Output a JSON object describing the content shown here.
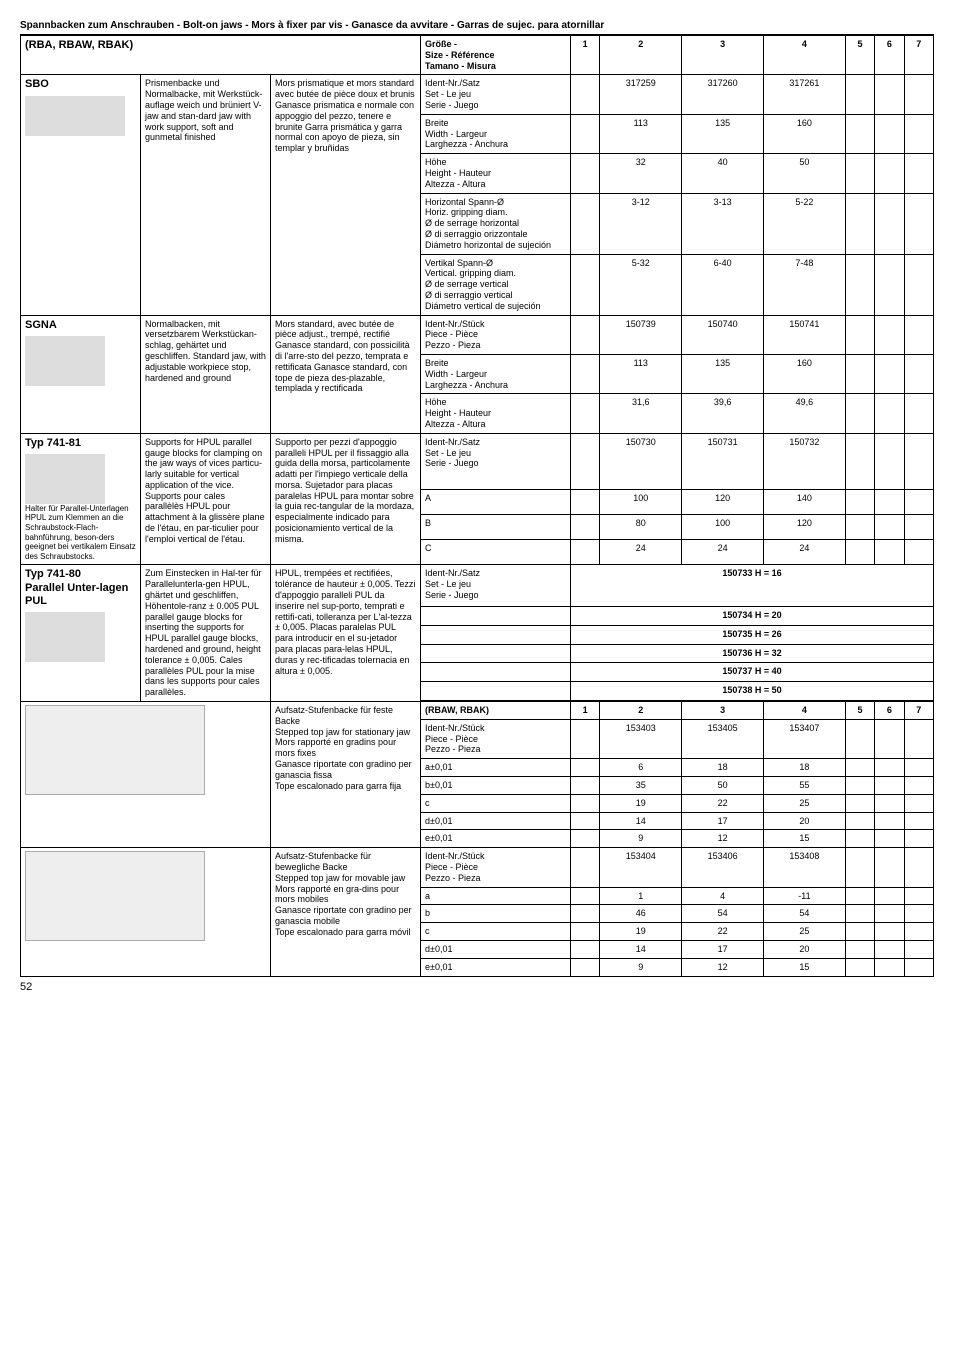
{
  "page_title": "Spannbacken zum Anschrauben - Bolt-on jaws - Mors à fixer par vis - Ganasce da avvitare - Garras de sujec. para atornillar",
  "page_number": "52",
  "top_header": {
    "model": "(RBA, RBAW, RBAK)",
    "size_label": "Größe -\nSize - Référence\nTamano - Misura",
    "cols": [
      "1",
      "2",
      "3",
      "4",
      "5",
      "6",
      "7"
    ]
  },
  "sbo": {
    "name": "SBO",
    "de": "Prismenbacke und Normalbacke, mit Werkstück-auflage weich und brüniert V-jaw and stan-dard jaw with work support, soft and gunmetal finished",
    "fr": "Mors prismatique et mors standard avec butée de pièce doux et brunis Ganasce prismatica e normale con appoggio del pezzo, tenere e brunite Garra prismática y garra normal con apoyo de pieza, sin templar y bruñidas",
    "rows": [
      {
        "param": "Ident-Nr./Satz\nSet - Le jeu\nSerie - Juego",
        "v": [
          "",
          "317259",
          "317260",
          "317261",
          "",
          "",
          ""
        ]
      },
      {
        "param": "Breite\nWidth - Largeur\nLarghezza - Anchura",
        "v": [
          "",
          "113",
          "135",
          "160",
          "",
          "",
          ""
        ]
      },
      {
        "param": "Höhe\nHeight - Hauteur\nAltezza - Altura",
        "v": [
          "",
          "32",
          "40",
          "50",
          "",
          "",
          ""
        ]
      },
      {
        "param": "Horizontal Spann-Ø\nHoriz. gripping diam.\nØ de serrage horizontal\nØ di serraggio orizzontale\nDiámetro horizontal de sujeción",
        "v": [
          "",
          "3-12",
          "3-13",
          "5-22",
          "",
          "",
          ""
        ]
      },
      {
        "param": "Vertikal Spann-Ø\nVertical. gripping diam.\nØ de serrage vertical\nØ di serraggio vertical\nDiámetro vertical de sujeción",
        "v": [
          "",
          "5-32",
          "6-40",
          "7-48",
          "",
          "",
          ""
        ]
      }
    ]
  },
  "sgna": {
    "name": "SGNA",
    "de": "Normalbacken, mit versetzbarem Werkstückan-schlag, gehärtet und geschliffen. Standard jaw, with adjustable workpiece stop, hardened and ground",
    "fr": "Mors standard, avec butée de pièce adjust., trempé, rectifié Ganasce standard, con possicilità di l'arre-sto del pezzo, temprata e rettificata Ganasce standard, con tope de pieza des-plazable, templada y rectificada",
    "rows": [
      {
        "param": "Ident-Nr./Stück\nPiece - Pièce\nPezzo - Pieza",
        "v": [
          "",
          "150739",
          "150740",
          "150741",
          "",
          "",
          ""
        ]
      },
      {
        "param": "Breite\nWidth - Largeur\nLarghezza - Anchura",
        "v": [
          "",
          "113",
          "135",
          "160",
          "",
          "",
          ""
        ]
      },
      {
        "param": "Höhe\nHeight - Hauteur\nAltezza - Altura",
        "v": [
          "",
          "31,6",
          "39,6",
          "49,6",
          "",
          "",
          ""
        ]
      }
    ]
  },
  "typ741_81": {
    "name": "Typ 741-81",
    "sub": "Halter für Parallel-Unterlagen HPUL zum Klemmen an die Schraubstock-Flach-bahnführung, beson-ders geeignet bei vertikalem Einsatz des Schraubstocks.",
    "de": "Supports for HPUL parallel gauge blocks for clamping on the jaw ways of vices particu-larly suitable for vertical application of the vice. Supports pour cales parallèlès HPUL pour attachment à la glissère plane de l'étau, en par-ticulier pour l'emploi vertical de l'étau.",
    "fr": "Supporto per pezzi d'appoggio paralleli HPUL per il fissaggio alla guida della morsa, particolamente adatti per l'impiego verticale della morsa. Sujetador para placas paralelas HPUL para montar sobre la guia rec-tangular de la mordaza, especialmente indicado para posicionamiento vertical de la misma.",
    "rows": [
      {
        "param": "Ident-Nr./Satz\nSet - Le jeu\nSerie - Juego",
        "v": [
          "",
          "150730",
          "150731",
          "150732",
          "",
          "",
          ""
        ]
      },
      {
        "param": "A",
        "v": [
          "",
          "100",
          "120",
          "140",
          "",
          "",
          ""
        ]
      },
      {
        "param": "B",
        "v": [
          "",
          "80",
          "100",
          "120",
          "",
          "",
          ""
        ]
      },
      {
        "param": "C",
        "v": [
          "",
          "24",
          "24",
          "24",
          "",
          "",
          ""
        ]
      }
    ]
  },
  "typ741_80": {
    "name": "Typ 741-80\nParallel Unter-lagen PUL",
    "de": "Zum Einstecken in Hal-ter für Parallelunterla-gen HPUL, ghärtet und geschliffen, Höhentole-ranz ± 0.005 PUL parallel gauge blocks for inserting the supports for HPUL parallel gauge blocks, hardened and ground, height tolerance ± 0,005. Cales parallèles PUL pour la mise dans les supports pour cales parallèles.",
    "fr": "HPUL, trempées et rectifiées, tolérance de hauteur ± 0,005. Tezzi d'appoggio paralleli PUL da inserire nel sup-porto, temprati e rettifi-cati, tolleranza per L'al-tezza ± 0,005. Placas paralelas PUL para introducir en el su-jetador para placas para-lelas HPUL, duras y rec-tificadas tolernacia en altura ± 0,005.",
    "header_row": {
      "param": "Ident-Nr./Satz\nSet - Le jeu\nSerie - Juego"
    },
    "span_rows": [
      "150733 H = 16",
      "150734 H = 20",
      "150735 H = 26",
      "150736 H = 32",
      "150737 H = 40",
      "150738 H = 50"
    ]
  },
  "stepped1": {
    "desc": "Aufsatz-Stufenbacke für feste Backe\nStepped top jaw for stationary jaw\nMors rapporté en gradins pour mors fixes\nGanasce riportate con gradino per ganascia fissa\nTope escalonado para garra fija",
    "header": "(RBAW, RBAK)",
    "cols": [
      "1",
      "2",
      "3",
      "4",
      "5",
      "6",
      "7"
    ],
    "rows": [
      {
        "param": "Ident-Nr./Stück\nPiece - Pièce\nPezzo - Pieza",
        "v": [
          "",
          "153403",
          "153405",
          "153407",
          "",
          "",
          ""
        ]
      },
      {
        "param": "a±0,01",
        "v": [
          "",
          "6",
          "18",
          "18",
          "",
          "",
          ""
        ]
      },
      {
        "param": "b±0,01",
        "v": [
          "",
          "35",
          "50",
          "55",
          "",
          "",
          ""
        ]
      },
      {
        "param": "c",
        "v": [
          "",
          "19",
          "22",
          "25",
          "",
          "",
          ""
        ]
      },
      {
        "param": "d±0,01",
        "v": [
          "",
          "14",
          "17",
          "20",
          "",
          "",
          ""
        ]
      },
      {
        "param": "e±0,01",
        "v": [
          "",
          "9",
          "12",
          "15",
          "",
          "",
          ""
        ]
      }
    ]
  },
  "stepped2": {
    "desc": "Aufsatz-Stufenbacke für bewegliche Backe\nStepped top jaw for movable jaw\nMors rapporté en gra-dins pour mors mobiles\nGanasce riportate con gradino per ganascia mobile\nTope escalonado para garra móvil",
    "rows": [
      {
        "param": "Ident-Nr./Stück\nPiece - Pièce\nPezzo - Pieza",
        "v": [
          "",
          "153404",
          "153406",
          "153408",
          "",
          "",
          ""
        ]
      },
      {
        "param": "a",
        "v": [
          "",
          "1",
          "4",
          "-11",
          "",
          "",
          ""
        ]
      },
      {
        "param": "b",
        "v": [
          "",
          "46",
          "54",
          "54",
          "",
          "",
          ""
        ]
      },
      {
        "param": "c",
        "v": [
          "",
          "19",
          "22",
          "25",
          "",
          "",
          ""
        ]
      },
      {
        "param": "d±0,01",
        "v": [
          "",
          "14",
          "17",
          "20",
          "",
          "",
          ""
        ]
      },
      {
        "param": "e±0,01",
        "v": [
          "",
          "9",
          "12",
          "15",
          "",
          "",
          ""
        ]
      }
    ]
  }
}
